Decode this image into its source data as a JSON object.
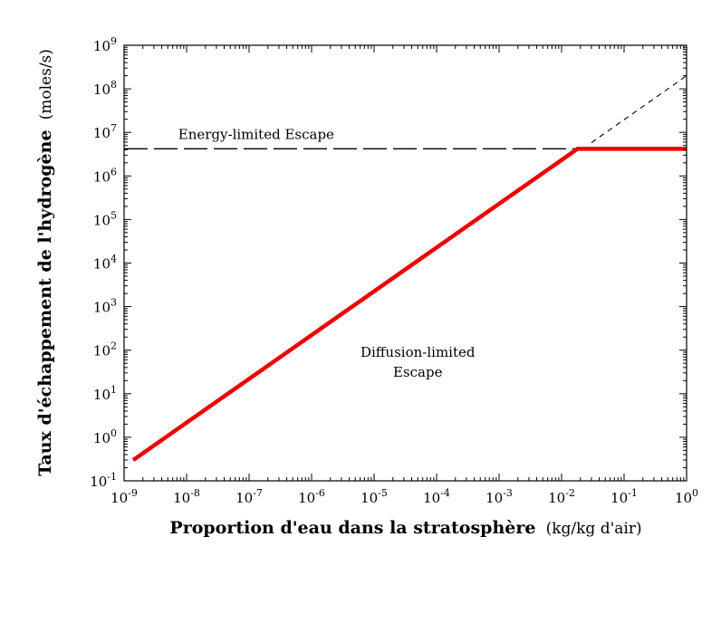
{
  "chart_data": {
    "type": "line",
    "xlabel": "Proportion d'eau dans la stratosphère",
    "xlabel_unit": "(kg/kg d'air)",
    "ylabel": "Taux d'échappement de l'hydrogène",
    "ylabel_unit": "(moles/s)",
    "x_scale": "log",
    "y_scale": "log",
    "xlim": [
      1e-09,
      1
    ],
    "ylim": [
      0.1,
      1000000000.0
    ],
    "x_ticks": [
      {
        "base": "10",
        "exp": "-9",
        "value": 1e-09
      },
      {
        "base": "10",
        "exp": "-8",
        "value": 1e-08
      },
      {
        "base": "10",
        "exp": "-7",
        "value": 1e-07
      },
      {
        "base": "10",
        "exp": "-6",
        "value": 1e-06
      },
      {
        "base": "10",
        "exp": "-5",
        "value": 1e-05
      },
      {
        "base": "10",
        "exp": "-4",
        "value": 0.0001
      },
      {
        "base": "10",
        "exp": "-3",
        "value": 0.001
      },
      {
        "base": "10",
        "exp": "-2",
        "value": 0.01
      },
      {
        "base": "10",
        "exp": "-1",
        "value": 0.1
      },
      {
        "base": "10",
        "exp": "0",
        "value": 1
      }
    ],
    "y_ticks": [
      {
        "base": "10",
        "exp": "-1",
        "value": 0.1
      },
      {
        "base": "10",
        "exp": "0",
        "value": 1
      },
      {
        "base": "10",
        "exp": "1",
        "value": 10.0
      },
      {
        "base": "10",
        "exp": "2",
        "value": 100.0
      },
      {
        "base": "10",
        "exp": "3",
        "value": 1000.0
      },
      {
        "base": "10",
        "exp": "4",
        "value": 10000.0
      },
      {
        "base": "10",
        "exp": "5",
        "value": 100000.0
      },
      {
        "base": "10",
        "exp": "6",
        "value": 1000000.0
      },
      {
        "base": "10",
        "exp": "7",
        "value": 10000000.0
      },
      {
        "base": "10",
        "exp": "8",
        "value": 100000000.0
      },
      {
        "base": "10",
        "exp": "9",
        "value": 1000000000.0
      }
    ],
    "series": [
      {
        "style": "solid-thick",
        "color": "#ee0000",
        "x": [
          1.4e-09,
          0.018,
          1
        ],
        "y": [
          0.3,
          4200000.0,
          4200000.0
        ]
      },
      {
        "style": "long-dash",
        "color": "#000000",
        "x": [
          1e-09,
          0.018
        ],
        "y": [
          4200000.0,
          4200000.0
        ]
      },
      {
        "style": "short-dash",
        "color": "#000000",
        "x": [
          0.03,
          1
        ],
        "y": [
          5800000.0,
          200000000.0
        ]
      }
    ],
    "annotations": [
      {
        "lines": [
          "Energy-limited Escape"
        ],
        "x": 1.3e-07,
        "y": 7000000.0
      },
      {
        "lines": [
          "Diffusion-limited",
          "Escape"
        ],
        "x": 5e-05,
        "y": 70
      }
    ],
    "grid": false,
    "legend": "none"
  }
}
